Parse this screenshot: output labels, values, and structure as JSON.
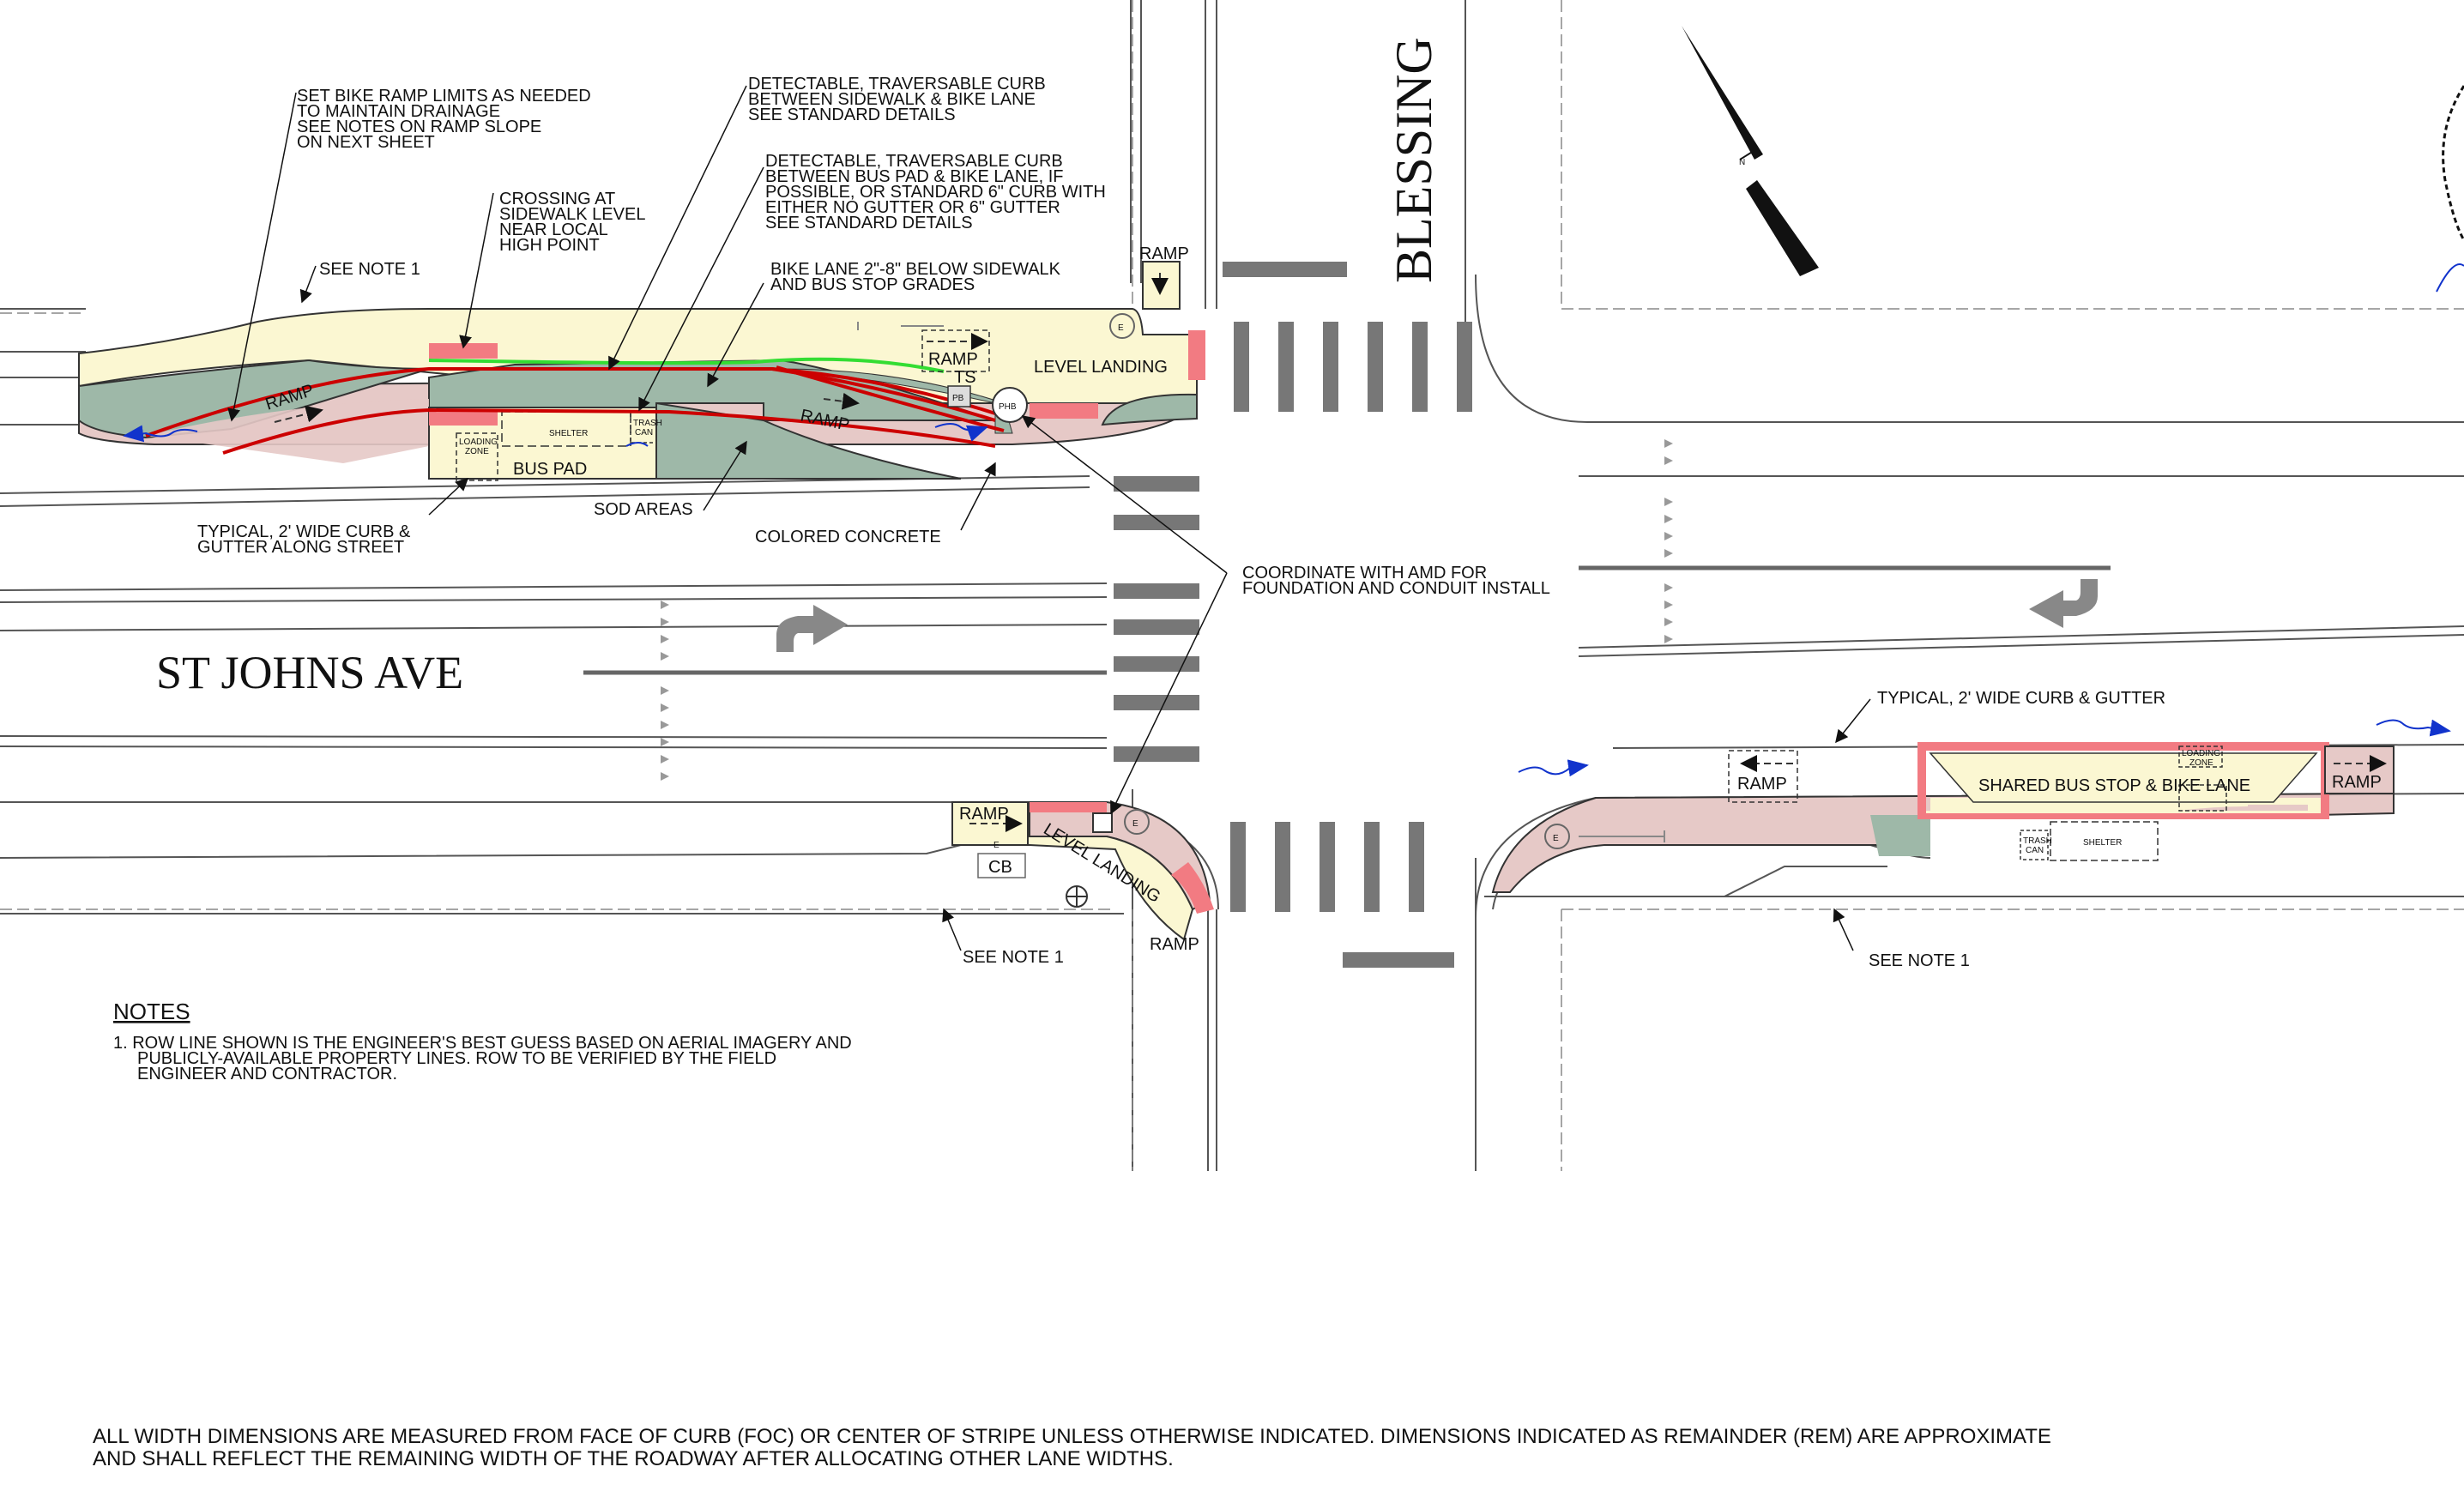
{
  "streets": {
    "main": "ST JOHNS AVE",
    "cross": "BLESSING"
  },
  "callouts": {
    "bike_ramp_limits": [
      "SET BIKE RAMP LIMITS AS NEEDED",
      "TO MAINTAIN DRAINAGE",
      "SEE NOTES ON RAMP SLOPE",
      "ON NEXT SHEET"
    ],
    "curb_sidewalk_bike": [
      "DETECTABLE, TRAVERSABLE CURB",
      "BETWEEN SIDEWALK & BIKE LANE",
      "SEE STANDARD DETAILS"
    ],
    "curb_buspad_bike": [
      "DETECTABLE, TRAVERSABLE CURB",
      "BETWEEN BUS PAD & BIKE LANE, IF",
      "POSSIBLE, OR STANDARD 6\" CURB WITH",
      "EITHER NO GUTTER OR 6\" GUTTER",
      "SEE STANDARD DETAILS"
    ],
    "crossing": [
      "CROSSING AT",
      "SIDEWALK LEVEL",
      "NEAR LOCAL",
      "HIGH POINT"
    ],
    "bike_lane_below": [
      "BIKE LANE 2\"-8\" BELOW SIDEWALK",
      "AND BUS STOP GRADES"
    ],
    "see_note_1": "SEE NOTE 1",
    "typical_curb_street": [
      "TYPICAL, 2' WIDE CURB &",
      "GUTTER ALONG STREET"
    ],
    "sod_areas": "SOD AREAS",
    "colored_concrete": "COLORED CONCRETE",
    "coordinate_amd": [
      "COORDINATE WITH AMD FOR",
      "FOUNDATION AND CONDUIT INSTALL"
    ],
    "typical_curb_gutter": "TYPICAL, 2' WIDE CURB & GUTTER"
  },
  "labels": {
    "ramp": "RAMP",
    "level_landing": "LEVEL LANDING",
    "bus_pad": "BUS PAD",
    "shelter": "SHELTER",
    "loading_zone": [
      "LOADING",
      "ZONE"
    ],
    "trash_can": [
      "TRASH",
      "CAN"
    ],
    "phb": "PHB",
    "ts": "TS",
    "pb": "PB",
    "e": "E",
    "cb": "CB",
    "shared_bus_stop": "SHARED BUS STOP & BIKE LANE"
  },
  "notes": {
    "heading": "NOTES",
    "items": [
      [
        "1.  ROW LINE SHOWN IS THE ENGINEER'S BEST GUESS BASED ON AERIAL IMAGERY AND",
        "PUBLICLY-AVAILABLE PROPERTY LINES.  ROW TO BE VERIFIED BY THE FIELD",
        "ENGINEER AND CONTRACTOR."
      ]
    ]
  },
  "footer": [
    "ALL WIDTH DIMENSIONS ARE MEASURED FROM FACE OF CURB (FOC) OR CENTER OF STRIPE UNLESS OTHERWISE INDICATED. DIMENSIONS INDICATED AS REMAINDER (REM) ARE APPROXIMATE",
    "AND SHALL REFLECT THE REMAINING WIDTH OF THE ROADWAY AFTER ALLOCATING OTHER LANE WIDTHS."
  ],
  "colors": {
    "sidewalk": "#fbf7d2",
    "bike_lane": "#e6c9c7",
    "sod": "#9eb8a8",
    "crossing": "#f27b82",
    "ramp_line": "#cc0000",
    "curb_green": "#33dd33",
    "flow_arrow": "#1133cc"
  }
}
